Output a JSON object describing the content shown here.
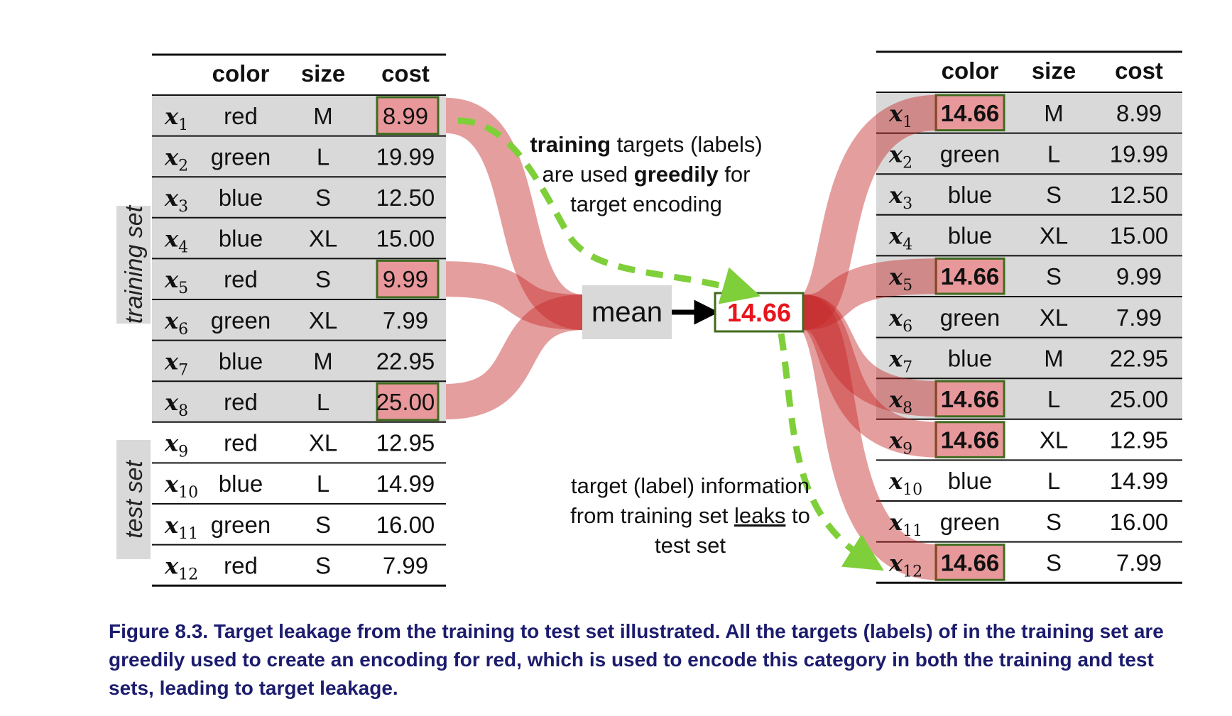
{
  "left_table": {
    "headers": [
      "color",
      "size",
      "cost"
    ],
    "rows": [
      {
        "sub": "1",
        "color": "red",
        "size": "M",
        "cost": "8.99"
      },
      {
        "sub": "2",
        "color": "green",
        "size": "L",
        "cost": "19.99"
      },
      {
        "sub": "3",
        "color": "blue",
        "size": "S",
        "cost": "12.50"
      },
      {
        "sub": "4",
        "color": "blue",
        "size": "XL",
        "cost": "15.00"
      },
      {
        "sub": "5",
        "color": "red",
        "size": "S",
        "cost": "9.99"
      },
      {
        "sub": "6",
        "color": "green",
        "size": "XL",
        "cost": "7.99"
      },
      {
        "sub": "7",
        "color": "blue",
        "size": "M",
        "cost": "22.95"
      },
      {
        "sub": "8",
        "color": "red",
        "size": "L",
        "cost": "25.00"
      },
      {
        "sub": "9",
        "color": "red",
        "size": "XL",
        "cost": "12.95"
      },
      {
        "sub": "10",
        "color": "blue",
        "size": "L",
        "cost": "14.99"
      },
      {
        "sub": "11",
        "color": "green",
        "size": "S",
        "cost": "16.00"
      },
      {
        "sub": "12",
        "color": "red",
        "size": "S",
        "cost": "7.99"
      }
    ]
  },
  "right_table": {
    "headers": [
      "color",
      "size",
      "cost"
    ],
    "rows": [
      {
        "sub": "1",
        "color": "14.66",
        "size": "M",
        "cost": "8.99"
      },
      {
        "sub": "2",
        "color": "green",
        "size": "L",
        "cost": "19.99"
      },
      {
        "sub": "3",
        "color": "blue",
        "size": "S",
        "cost": "12.50"
      },
      {
        "sub": "4",
        "color": "blue",
        "size": "XL",
        "cost": "15.00"
      },
      {
        "sub": "5",
        "color": "14.66",
        "size": "S",
        "cost": "9.99"
      },
      {
        "sub": "6",
        "color": "green",
        "size": "XL",
        "cost": "7.99"
      },
      {
        "sub": "7",
        "color": "blue",
        "size": "M",
        "cost": "22.95"
      },
      {
        "sub": "8",
        "color": "14.66",
        "size": "L",
        "cost": "25.00"
      },
      {
        "sub": "9",
        "color": "14.66",
        "size": "XL",
        "cost": "12.95"
      },
      {
        "sub": "10",
        "color": "blue",
        "size": "L",
        "cost": "14.99"
      },
      {
        "sub": "11",
        "color": "green",
        "size": "S",
        "cost": "16.00"
      },
      {
        "sub": "12",
        "color": "14.66",
        "size": "S",
        "cost": "7.99"
      }
    ]
  },
  "row_symbol": "x",
  "labels": {
    "training_set": "training set",
    "test_set": "test set",
    "mean": "mean",
    "encoded_value": "14.66"
  },
  "annotation_top": {
    "line1_bold": "training",
    "line1_rest": " targets (labels)",
    "line2_pre": "are used ",
    "line2_bold": "greedily",
    "line2_post": " for",
    "line3": "target encoding"
  },
  "annotation_bottom": {
    "line1": "target (label) information",
    "line2_pre": "from training set ",
    "line2_under": "leaks",
    "line2_post": " to",
    "line3": "test set"
  },
  "caption": "Figure 8.3. Target leakage from the training to test set illustrated. All the targets (labels) of in the training set are greedily used to create an encoding for red, which is used to encode this category in both the training and test sets, leading to target leakage.",
  "colors": {
    "red": "#e8141c",
    "green": "#4a8a2a",
    "blue": "#2c4f9a",
    "flow": "#c62828",
    "highlight_fill": "#e8989a",
    "highlight_border": "#3f6b1f",
    "dashed_arrow": "#7fcf3a",
    "shade": "#d9d9d9",
    "caption": "#1c1c6e"
  }
}
